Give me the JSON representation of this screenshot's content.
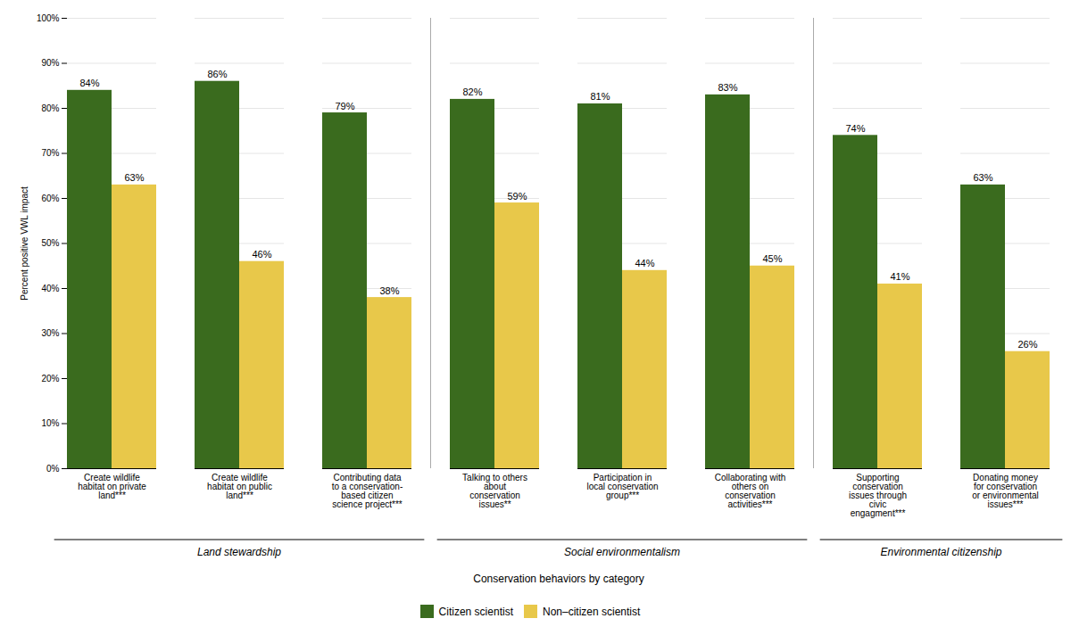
{
  "chart_data": {
    "type": "bar",
    "categories": [
      "Create wildlife\nhabitat on private\nland***",
      "Create wildlife\nhabitat on public\nland***",
      "Contributing data\nto a conservation-\nbased citizen\nscience project***",
      "Talking to others\nabout\nconservation\nissues**",
      "Participation in\nlocal conservation\ngroup***",
      "Collaborating with\nothers on\nconservation\nactivities***",
      "Supporting\nconservation\nissues through\ncivic\nengagment***",
      "Donating money\nfor conservation\nor environmental\nissues***"
    ],
    "series": [
      {
        "name": "Citizen scientist",
        "color": "#3a6b1e",
        "values": [
          84,
          86,
          79,
          82,
          81,
          83,
          74,
          63
        ],
        "value_labels": [
          "84%",
          "86%",
          "79%",
          "82%",
          "81%",
          "83%",
          "74%",
          "63%"
        ]
      },
      {
        "name": "Non–citizen scientist",
        "color": "#e8c84a",
        "values": [
          63,
          46,
          38,
          59,
          44,
          45,
          41,
          26
        ],
        "value_labels": [
          "63%",
          "46%",
          "38%",
          "59%",
          "44%",
          "45%",
          "41%",
          "26%"
        ]
      }
    ],
    "ylim": [
      0,
      100
    ],
    "yticks": [
      {
        "value": 0,
        "label": "0%"
      },
      {
        "value": 10,
        "label": "10%"
      },
      {
        "value": 20,
        "label": "20%"
      },
      {
        "value": 30,
        "label": "30%"
      },
      {
        "value": 40,
        "label": "40%"
      },
      {
        "value": 50,
        "label": "50%"
      },
      {
        "value": 60,
        "label": "60%"
      },
      {
        "value": 70,
        "label": "70%"
      },
      {
        "value": 80,
        "label": "80%"
      },
      {
        "value": 90,
        "label": "90%"
      },
      {
        "value": 100,
        "label": "100%"
      }
    ],
    "ylabel": "Percent positive VWL impact",
    "xlabel": "Conservation behaviors by category",
    "grid": true,
    "legend": "bottom",
    "data_labels": true,
    "groups": [
      {
        "label": "Land stewardship",
        "span": [
          0,
          2
        ]
      },
      {
        "label": "Social environmentalism",
        "span": [
          3,
          5
        ]
      },
      {
        "label": "Environmental citizenship",
        "span": [
          6,
          7
        ]
      }
    ]
  }
}
